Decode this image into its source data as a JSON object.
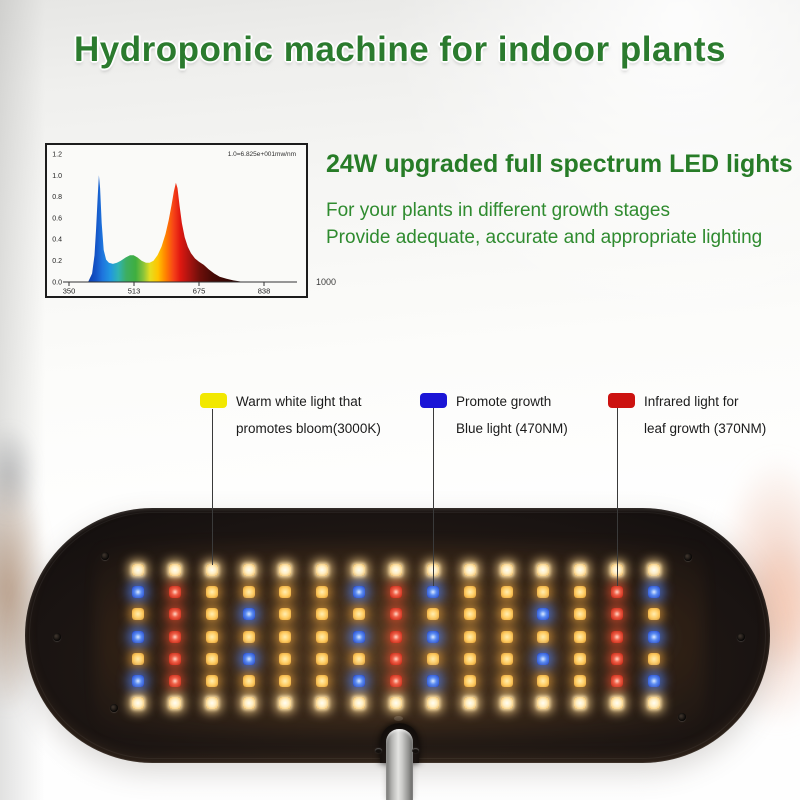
{
  "header": {
    "title": "Hydroponic machine for indoor plants"
  },
  "promo": {
    "heading": "24W upgraded full spectrum LED lights",
    "line1": "For your plants in different growth stages",
    "line2": "Provide adequate, accurate and appropriate lighting"
  },
  "chart_data": {
    "type": "area",
    "annotation": "1.0=6.825e+001mw/nm",
    "x_tick_labels": [
      "350",
      "513",
      "675",
      "838"
    ],
    "outside_x_label": "1000",
    "y_tick_labels": [
      "1.2",
      "1.0",
      "0.8",
      "0.6",
      "0.4",
      "0.2",
      "0.0"
    ],
    "ylim": [
      0,
      1.2
    ],
    "x_axis_values_nm": [
      350,
      513,
      675,
      838,
      1000
    ],
    "grid": false,
    "series": [
      {
        "name": "led-spectrum-relative-intensity",
        "points": [
          [
            398,
            0
          ],
          [
            408,
            0.08
          ],
          [
            414,
            0.25
          ],
          [
            418,
            0.5
          ],
          [
            422,
            0.8
          ],
          [
            425,
            1.0
          ],
          [
            428,
            0.88
          ],
          [
            432,
            0.55
          ],
          [
            437,
            0.3
          ],
          [
            443,
            0.21
          ],
          [
            450,
            0.18
          ],
          [
            460,
            0.17
          ],
          [
            470,
            0.18
          ],
          [
            480,
            0.2
          ],
          [
            492,
            0.23
          ],
          [
            503,
            0.25
          ],
          [
            512,
            0.25
          ],
          [
            522,
            0.23
          ],
          [
            532,
            0.2
          ],
          [
            543,
            0.18
          ],
          [
            552,
            0.18
          ],
          [
            562,
            0.2
          ],
          [
            572,
            0.25
          ],
          [
            582,
            0.33
          ],
          [
            592,
            0.45
          ],
          [
            600,
            0.58
          ],
          [
            607,
            0.72
          ],
          [
            613,
            0.85
          ],
          [
            618,
            0.93
          ],
          [
            622,
            0.88
          ],
          [
            627,
            0.72
          ],
          [
            633,
            0.55
          ],
          [
            640,
            0.42
          ],
          [
            648,
            0.33
          ],
          [
            656,
            0.27
          ],
          [
            666,
            0.22
          ],
          [
            676,
            0.19
          ],
          [
            688,
            0.16
          ],
          [
            700,
            0.12
          ],
          [
            714,
            0.08
          ],
          [
            728,
            0.05
          ],
          [
            745,
            0.03
          ],
          [
            762,
            0.015
          ],
          [
            780,
            0.005
          ],
          [
            795,
            0
          ]
        ]
      }
    ],
    "spectrum_colors": {
      "blue": "#1e66d6",
      "green": "#3fae3f",
      "yellow": "#ffe400",
      "orange": "#ff8a00",
      "red": "#e01810",
      "deep_red": "#470a06"
    }
  },
  "legend": {
    "items": [
      {
        "swatch_color": "#f2e800",
        "lines": [
          "Warm white light that",
          "promotes bloom(3000K)"
        ]
      },
      {
        "swatch_color": "#1b15d6",
        "lines": [
          "Promote growth",
          "Blue light (470NM)"
        ]
      },
      {
        "swatch_color": "#cc1210",
        "lines": [
          "Infrared light for",
          "leaf growth (370NM)"
        ]
      }
    ]
  },
  "led_panel": {
    "rows": 7,
    "columns": 15,
    "pattern_by_column": [
      "WBYBYBW",
      "WRRRRRW",
      "WYYYYYW",
      "WYBYBYW",
      "WYYYYYW",
      "WYYYYYW",
      "WBYBYBW",
      "WRRRRRW",
      "WBYBYBW",
      "WYYYYYW",
      "WYYYYYW",
      "WYBYBYW",
      "WYYYYYW",
      "WRRRRRW",
      "WBYBYBW"
    ],
    "led_types": {
      "W": "warm-white",
      "Y": "amber",
      "B": "blue",
      "R": "red"
    },
    "led_type_colors": {
      "warm-white": "#ffeec2",
      "amber": "#ffce66",
      "blue": "#2a52e2",
      "red": "#d52a16"
    }
  },
  "colors": {
    "title_green": "#2b7b2e",
    "body_green": "#2f8b2f"
  }
}
